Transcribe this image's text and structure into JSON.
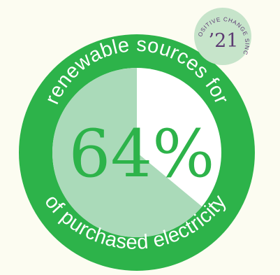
{
  "colors": {
    "background": "#FCFCF1",
    "ring": "#2DB34A",
    "filled_slice": "#AADAB9",
    "remaining_slice": "#FFFFFF",
    "badge": "#C6E4CA",
    "badge_text": "#5C3A72"
  },
  "main": {
    "arc_top_text": "renewable sources for",
    "arc_bottom_text": "of purchased electricity",
    "percent_label": "64%",
    "percent_value": 64
  },
  "badge": {
    "arc_text": "POSITIVE CHANGE SINCE",
    "year": "’21"
  },
  "chart_data": {
    "type": "pie",
    "values": [
      64,
      36
    ]
  }
}
